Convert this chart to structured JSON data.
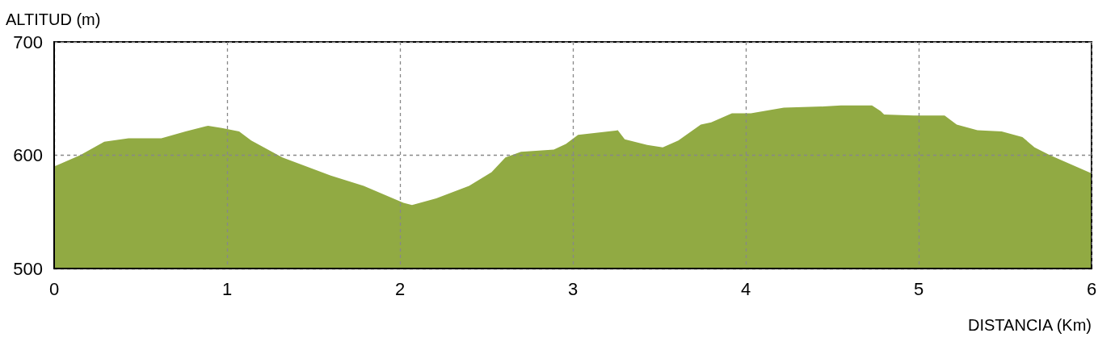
{
  "chart_data": {
    "type": "area",
    "xlabel": "DISTANCIA (Km)",
    "ylabel": "ALTITUD (m)",
    "x": [
      0,
      0.15,
      0.29,
      0.43,
      0.62,
      0.76,
      0.89,
      0.97,
      1.07,
      1.14,
      1.32,
      1.6,
      1.79,
      2.02,
      2.07,
      2.21,
      2.4,
      2.53,
      2.61,
      2.7,
      2.89,
      2.96,
      3.03,
      3.26,
      3.3,
      3.43,
      3.52,
      3.61,
      3.74,
      3.8,
      3.92,
      4.03,
      4.22,
      4.45,
      4.55,
      4.73,
      4.78,
      4.8,
      4.97,
      5.15,
      5.22,
      5.34,
      5.48,
      5.6,
      5.67,
      5.76,
      6
    ],
    "values": [
      590,
      600,
      612,
      615,
      615,
      621,
      626,
      624,
      621,
      613,
      598,
      582,
      573,
      558,
      556,
      562,
      573,
      585,
      598,
      603,
      605,
      610,
      618,
      622,
      614,
      609,
      607,
      613,
      627,
      629,
      637,
      637,
      642,
      643,
      644,
      644,
      639,
      636,
      635,
      635,
      627,
      622,
      621,
      616,
      607,
      600,
      584
    ],
    "color": "#91aa43",
    "xlim": [
      0,
      6
    ],
    "xticks": [
      0,
      1,
      2,
      3,
      4,
      5,
      6
    ],
    "ylim": [
      500,
      700
    ],
    "yticks": [
      500,
      600,
      700
    ],
    "grid": true
  }
}
